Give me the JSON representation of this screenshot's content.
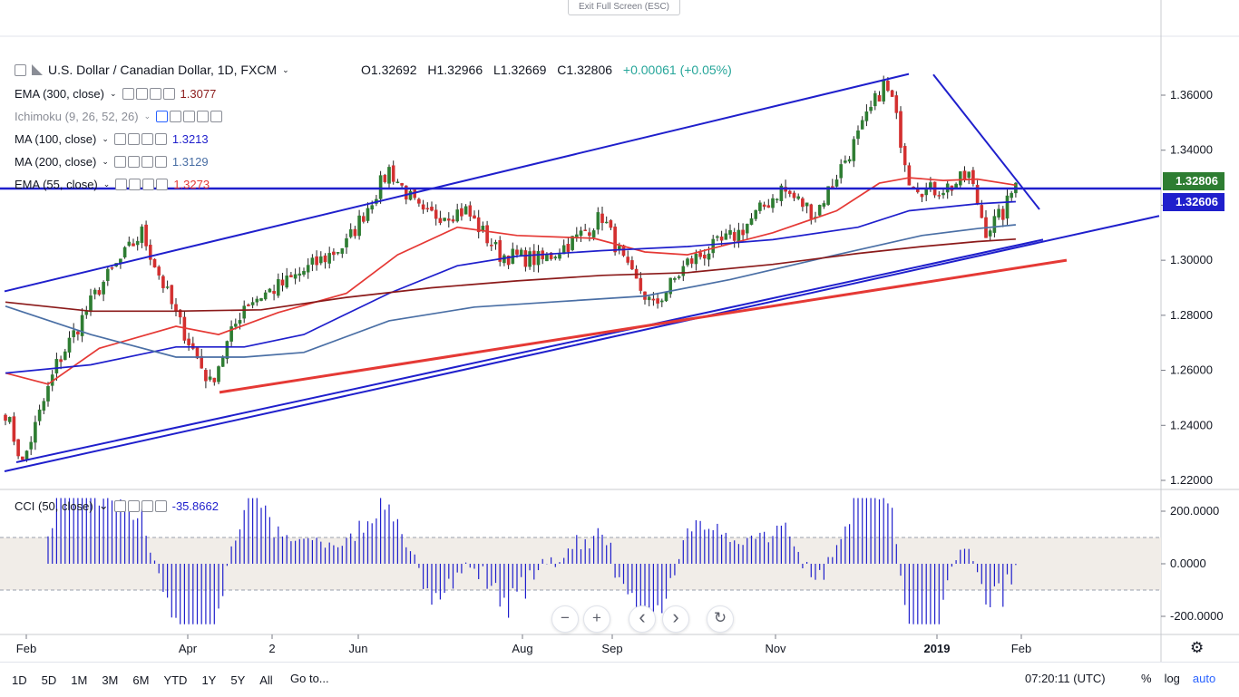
{
  "window": {
    "exit_fullscreen": "Exit Full Screen (ESC)"
  },
  "header": {
    "symbol": "U.S. Dollar / Canadian Dollar, 1D, FXCM",
    "open": "O1.32692",
    "high": "H1.32966",
    "low": "L1.32669",
    "close": "C1.32806",
    "change": "+0.00061 (+0.05%)"
  },
  "indicators": [
    {
      "name": "EMA (300, close)",
      "value": "1.3077",
      "color": "#8b1a1a"
    },
    {
      "name": "Ichimoku (9, 26, 52, 26)",
      "value": "",
      "color": "#2962ff"
    },
    {
      "name": "MA (100, close)",
      "value": "1.3213",
      "color": "#1f1fcc"
    },
    {
      "name": "MA (200, close)",
      "value": "1.3129",
      "color": "#4a6fa5"
    },
    {
      "name": "EMA (55, close)",
      "value": "1.3273",
      "color": "#e53935"
    }
  ],
  "price_tags": [
    {
      "label": "1.32806",
      "color": "#2e7d32"
    },
    {
      "label": "1.32606",
      "color": "#1f1fcc"
    }
  ],
  "cci": {
    "name": "CCI (50, close)",
    "value": "-35.8662",
    "color": "#1f1fcc"
  },
  "nav_buttons": [
    {
      "name": "zoom-out-button",
      "glyph": "−"
    },
    {
      "name": "zoom-in-button",
      "glyph": "+"
    },
    {
      "name": "scroll-left-button",
      "glyph": "‹"
    },
    {
      "name": "scroll-right-button",
      "glyph": "›"
    },
    {
      "name": "reset-button",
      "glyph": "↻"
    }
  ],
  "toolbar": {
    "timeframes": [
      "1D",
      "5D",
      "1M",
      "3M",
      "6M",
      "YTD",
      "1Y",
      "5Y",
      "All"
    ],
    "goto": "Go to...",
    "clock": "07:20:11 (UTC)",
    "percent": "%",
    "log": "log",
    "auto": "auto"
  },
  "chart_data": {
    "type": "candlestick",
    "x_ticks": [
      "Feb",
      "Apr",
      "2",
      "Jun",
      "Aug",
      "Sep",
      "Nov",
      "2019",
      "Feb"
    ],
    "y_ticks": [
      "1.36000",
      "1.34000",
      "1.32000",
      "1.30000",
      "1.28000",
      "1.26000",
      "1.24000",
      "1.22000"
    ],
    "ylim": [
      1.22,
      1.37
    ],
    "key_points": [
      {
        "t": 0,
        "p": 1.245
      },
      {
        "t": 4,
        "p": 1.226
      },
      {
        "t": 12,
        "p": 1.262
      },
      {
        "t": 22,
        "p": 1.29
      },
      {
        "t": 32,
        "p": 1.31
      },
      {
        "t": 40,
        "p": 1.28
      },
      {
        "t": 48,
        "p": 1.255
      },
      {
        "t": 56,
        "p": 1.284
      },
      {
        "t": 66,
        "p": 1.292
      },
      {
        "t": 80,
        "p": 1.306
      },
      {
        "t": 90,
        "p": 1.333
      },
      {
        "t": 98,
        "p": 1.316
      },
      {
        "t": 108,
        "p": 1.318
      },
      {
        "t": 116,
        "p": 1.302
      },
      {
        "t": 126,
        "p": 1.3
      },
      {
        "t": 134,
        "p": 1.308
      },
      {
        "t": 140,
        "p": 1.316
      },
      {
        "t": 146,
        "p": 1.296
      },
      {
        "t": 152,
        "p": 1.283
      },
      {
        "t": 160,
        "p": 1.299
      },
      {
        "t": 172,
        "p": 1.31
      },
      {
        "t": 182,
        "p": 1.326
      },
      {
        "t": 190,
        "p": 1.317
      },
      {
        "t": 200,
        "p": 1.345
      },
      {
        "t": 206,
        "p": 1.364
      },
      {
        "t": 208,
        "p": 1.358
      },
      {
        "t": 212,
        "p": 1.33
      },
      {
        "t": 216,
        "p": 1.325
      },
      {
        "t": 222,
        "p": 1.327
      },
      {
        "t": 226,
        "p": 1.331
      },
      {
        "t": 230,
        "p": 1.311
      },
      {
        "t": 234,
        "p": 1.317
      },
      {
        "t": 237,
        "p": 1.328
      }
    ],
    "indicators": [
      {
        "name": "EMA (55, close)",
        "color": "#e53935",
        "points": [
          [
            0,
            1.259
          ],
          [
            10,
            1.255
          ],
          [
            22,
            1.268
          ],
          [
            40,
            1.276
          ],
          [
            50,
            1.273
          ],
          [
            64,
            1.281
          ],
          [
            80,
            1.288
          ],
          [
            92,
            1.302
          ],
          [
            106,
            1.312
          ],
          [
            120,
            1.309
          ],
          [
            138,
            1.308
          ],
          [
            150,
            1.303
          ],
          [
            160,
            1.302
          ],
          [
            180,
            1.31
          ],
          [
            195,
            1.318
          ],
          [
            205,
            1.328
          ],
          [
            212,
            1.33
          ],
          [
            220,
            1.329
          ],
          [
            228,
            1.3295
          ],
          [
            237,
            1.3273
          ]
        ]
      },
      {
        "name": "MA (100, close)",
        "color": "#1f1fcc",
        "points": [
          [
            0,
            1.259
          ],
          [
            20,
            1.262
          ],
          [
            40,
            1.2685
          ],
          [
            56,
            1.2685
          ],
          [
            70,
            1.273
          ],
          [
            90,
            1.288
          ],
          [
            106,
            1.298
          ],
          [
            120,
            1.3015
          ],
          [
            140,
            1.3035
          ],
          [
            160,
            1.305
          ],
          [
            180,
            1.3075
          ],
          [
            200,
            1.312
          ],
          [
            212,
            1.318
          ],
          [
            228,
            1.3205
          ],
          [
            237,
            1.3213
          ]
        ]
      },
      {
        "name": "MA (200, close)",
        "color": "#4a6fa5",
        "points": [
          [
            0,
            1.2833
          ],
          [
            20,
            1.273
          ],
          [
            40,
            1.2648
          ],
          [
            56,
            1.2648
          ],
          [
            70,
            1.2665
          ],
          [
            90,
            1.278
          ],
          [
            110,
            1.283
          ],
          [
            130,
            1.285
          ],
          [
            150,
            1.287
          ],
          [
            170,
            1.293
          ],
          [
            195,
            1.302
          ],
          [
            215,
            1.309
          ],
          [
            228,
            1.3115
          ],
          [
            237,
            1.3129
          ]
        ]
      },
      {
        "name": "EMA (300, close)",
        "color": "#8b1a1a",
        "points": [
          [
            0,
            1.2848
          ],
          [
            20,
            1.2815
          ],
          [
            40,
            1.2815
          ],
          [
            60,
            1.282
          ],
          [
            80,
            1.2865
          ],
          [
            100,
            1.29
          ],
          [
            120,
            1.2925
          ],
          [
            140,
            1.2945
          ],
          [
            160,
            1.2955
          ],
          [
            180,
            1.2985
          ],
          [
            200,
            1.3025
          ],
          [
            215,
            1.305
          ],
          [
            228,
            1.3068
          ],
          [
            237,
            1.3077
          ]
        ]
      }
    ],
    "cci": {
      "name": "CCI (50, close)",
      "value": -35.8662,
      "y_ticks": [
        "200.0000",
        "0.0000",
        "-200.0000"
      ],
      "ylim": [
        -240,
        260
      ],
      "band": [
        -100,
        100
      ]
    }
  }
}
